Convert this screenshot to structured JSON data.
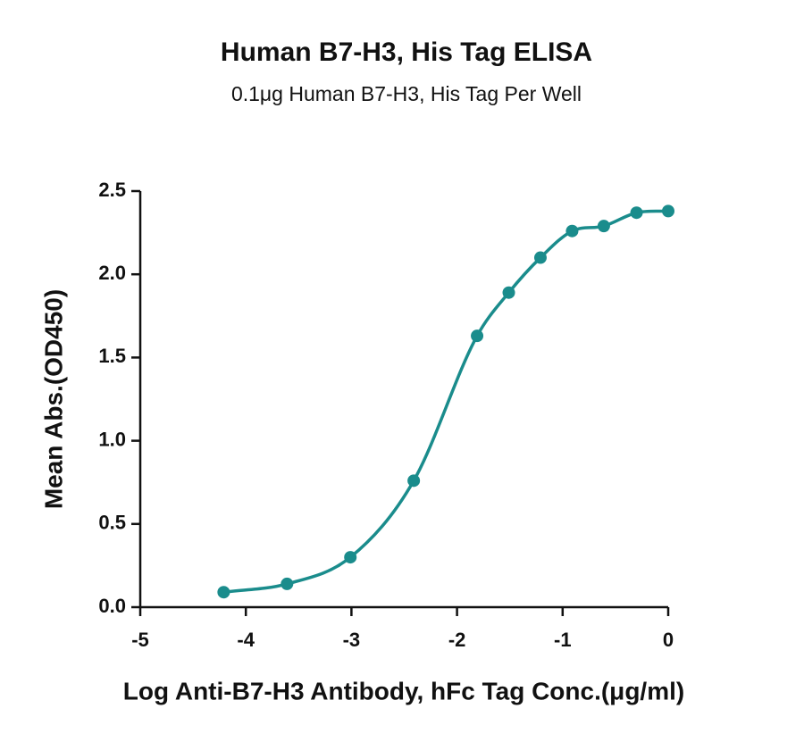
{
  "chart_data": {
    "type": "scatter",
    "title": "Human B7-H3, His Tag ELISA",
    "subtitle": "0.1μg Human B7-H3, His Tag Per Well",
    "x_label": "Log Anti-B7-H3 Antibody, hFc Tag Conc.(μg/ml)",
    "y_label": "Mean Abs.(OD450)",
    "x": [
      -4.21,
      -3.61,
      -3.01,
      -2.41,
      -1.81,
      -1.51,
      -1.21,
      -0.91,
      -0.61,
      -0.3,
      0
    ],
    "series": [
      {
        "color": "#1a8c8c",
        "values": [
          0.09,
          0.14,
          0.3,
          0.76,
          1.63,
          1.89,
          2.1,
          2.26,
          2.29,
          2.37,
          2.38
        ]
      }
    ],
    "xlim": [
      -5,
      0
    ],
    "xticks": [
      -5,
      -4,
      -3,
      -2,
      -1,
      0
    ],
    "ylim": [
      0,
      2.5
    ],
    "yticks": [
      {
        "value": 0,
        "label": "0.0"
      },
      {
        "value": 0.5,
        "label": "0.5"
      },
      {
        "value": 1,
        "label": "1.0"
      },
      {
        "value": 1.5,
        "label": "1.5"
      },
      {
        "value": 2,
        "label": "2.0"
      },
      {
        "value": 2.5,
        "label": "2.5"
      }
    ],
    "fit_curve": true
  }
}
